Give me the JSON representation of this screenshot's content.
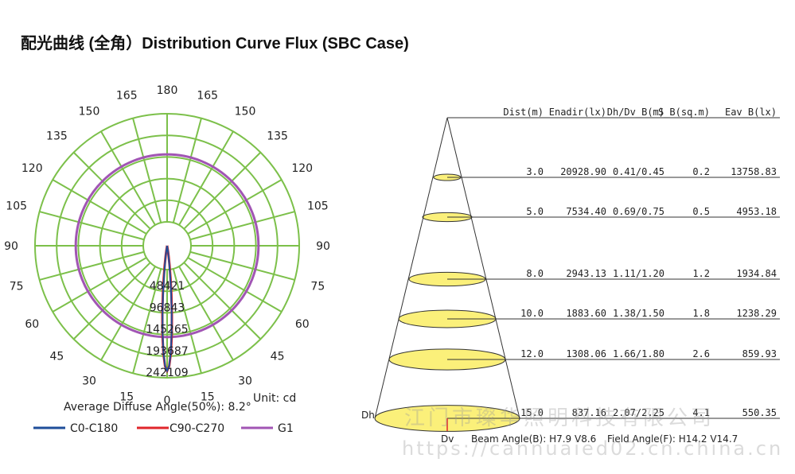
{
  "title": "配光曲线 (全角）Distribution Curve Flux (SBC Case)",
  "colors": {
    "grid": "#7cc04a",
    "c0": "#1f4e9a",
    "c90": "#e0262b",
    "g1": "#a155b4",
    "cone": "#fbf07a"
  },
  "polar": {
    "angle_labels_left": [
      "165",
      "150",
      "135",
      "120",
      "105",
      "90",
      "75",
      "60",
      "45",
      "30",
      "15"
    ],
    "angle_labels_right": [
      "165",
      "150",
      "135",
      "120",
      "105",
      "90",
      "75",
      "60",
      "45",
      "30",
      "15"
    ],
    "angle_top": "180",
    "angle_bottom": "0",
    "ring_labels": [
      "48421",
      "96843",
      "145265",
      "193687",
      "242109"
    ],
    "average_diffuse_angle_label": "Average Diffuse Angle(50%): 8.2°",
    "unit_label": "Unit: cd",
    "legend": [
      {
        "name": "C0-C180",
        "color": "#1f4e9a"
      },
      {
        "name": "C90-C270",
        "color": "#e0262b"
      },
      {
        "name": "G1",
        "color": "#a155b4"
      }
    ]
  },
  "chart_data": {
    "type": "polar-intensity",
    "radial_max": 242109,
    "ring_values": [
      48421,
      96843,
      145265,
      193687,
      242109
    ],
    "series": [
      {
        "name": "C0-C180",
        "half_angle_deg": 8.2,
        "peak_cd": 235000
      },
      {
        "name": "C90-C270",
        "half_angle_deg": 8.6,
        "peak_cd": 235000
      },
      {
        "name": "G1",
        "uniform_cd": 151000
      }
    ],
    "average_diffuse_angle_deg": 8.2
  },
  "cone": {
    "headers": [
      "Dist(m)",
      "Enadir(lx)",
      "Dh/Dv_B(m)",
      "S_B(sq.m)",
      "Eav_B(lx)"
    ],
    "rows": [
      [
        "3.0",
        "20928.90",
        "0.41/0.45",
        "0.2",
        "13758.83"
      ],
      [
        "5.0",
        "7534.40",
        "0.69/0.75",
        "0.5",
        "4953.18"
      ],
      [
        "8.0",
        "2943.13",
        "1.11/1.20",
        "1.2",
        "1934.84"
      ],
      [
        "10.0",
        "1883.60",
        "1.38/1.50",
        "1.8",
        "1238.29"
      ],
      [
        "12.0",
        "1308.06",
        "1.66/1.80",
        "2.6",
        "859.93"
      ],
      [
        "15.0",
        "837.16",
        "2.07/2.25",
        "4.1",
        "550.35"
      ]
    ],
    "dh_label": "Dh",
    "dv_label": "Dv",
    "beam_label": "Beam Angle(B): H7.9 V8.6",
    "field_label": "Field Angle(F): H14.2 V14.7"
  },
  "watermark": {
    "company": "江门市璨华照明科技有限公司",
    "url": "https://cannuaied02.cn.china.cn"
  }
}
